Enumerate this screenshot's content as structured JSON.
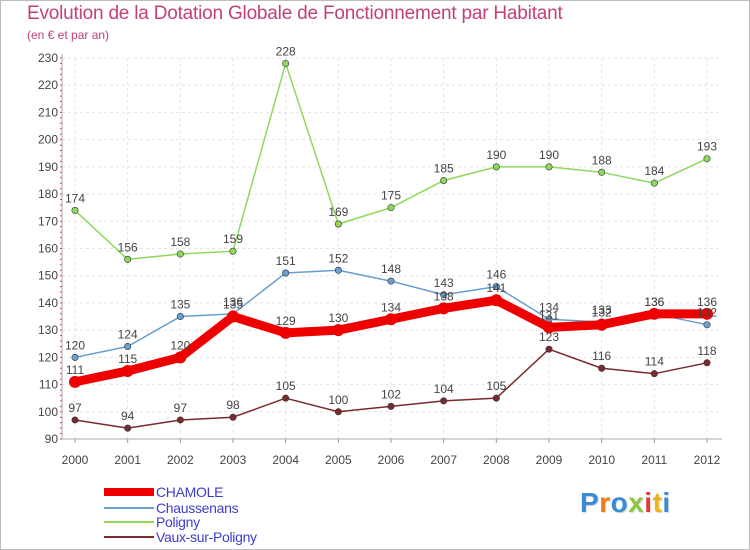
{
  "chart_data": {
    "type": "line",
    "title": "Evolution de la Dotation Globale de Fonctionnement par Habitant",
    "subtitle": "(en € et par an)",
    "x": [
      "2000",
      "2001",
      "2002",
      "2003",
      "2004",
      "2005",
      "2006",
      "2007",
      "2008",
      "2009",
      "2010",
      "2011",
      "2012"
    ],
    "ylim": [
      90,
      230
    ],
    "yticks": [
      90,
      100,
      110,
      120,
      130,
      140,
      150,
      160,
      170,
      180,
      190,
      200,
      210,
      220,
      230
    ],
    "grid": true,
    "legend_position": "bottom-left",
    "series": [
      {
        "name": "Vaux-sur-Poligny",
        "color": "#7a2a2e",
        "values": [
          97,
          94,
          97,
          98,
          105,
          100,
          102,
          104,
          105,
          123,
          116,
          114,
          118
        ]
      },
      {
        "name": "Poligny",
        "color": "#8fd85c",
        "values": [
          174,
          156,
          158,
          159,
          228,
          169,
          175,
          185,
          190,
          190,
          188,
          184,
          193
        ]
      },
      {
        "name": "Chaussenans",
        "color": "#6a9fcf",
        "values": [
          120,
          124,
          135,
          136,
          151,
          152,
          148,
          143,
          146,
          134,
          133,
          136,
          132
        ]
      },
      {
        "name": "CHAMOLE",
        "color": "#ee0000",
        "values": [
          111,
          115,
          120,
          135,
          129,
          130,
          134,
          138,
          141,
          131,
          132,
          136,
          136
        ]
      }
    ],
    "legend": [
      "CHAMOLE",
      "Chaussenans",
      "Poligny",
      "Vaux-sur-Poligny"
    ]
  },
  "logo": {
    "text": "Proxiti",
    "colors": [
      "#3a8bd6",
      "#f07a1a",
      "#3a8bd6",
      "#8cc63f",
      "#e23a3a",
      "#f0b41a",
      "#3a8bd6"
    ]
  }
}
